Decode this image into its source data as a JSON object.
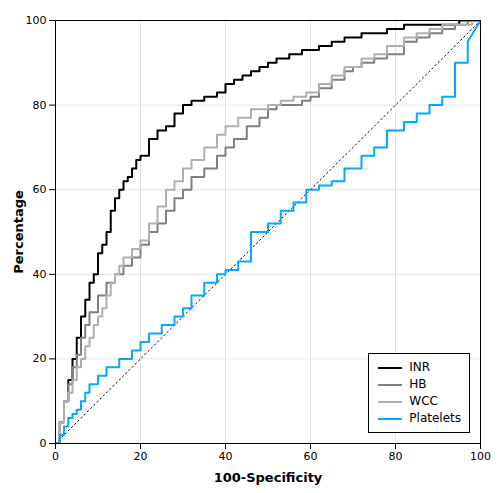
{
  "chart_data": {
    "type": "line",
    "xlabel": "100-Specificity",
    "ylabel": "Percentage",
    "xlim": [
      0,
      100
    ],
    "ylim": [
      0,
      100
    ],
    "xticks": [
      0,
      20,
      40,
      60,
      80,
      100
    ],
    "yticks": [
      0,
      20,
      40,
      60,
      80,
      100
    ],
    "grid": true,
    "legend": "lower right",
    "reference_line": {
      "x": [
        0,
        100
      ],
      "values": [
        0,
        100
      ],
      "color": "#000000",
      "line_style": "dotted"
    },
    "series": [
      {
        "name": "INR",
        "color": "#000000",
        "x": [
          0,
          1,
          1,
          2,
          2,
          3,
          3,
          4,
          4,
          5,
          5,
          6,
          6,
          7,
          7,
          8,
          8,
          9,
          9,
          10,
          10,
          11,
          11,
          12,
          12,
          13,
          13,
          14,
          14,
          15,
          15,
          16,
          16,
          17,
          17,
          18,
          18,
          19,
          19,
          20,
          20,
          22,
          22,
          24,
          24,
          26,
          26,
          28,
          28,
          30,
          30,
          32,
          32,
          35,
          35,
          38,
          38,
          40,
          40,
          42,
          42,
          44,
          44,
          46,
          46,
          48,
          48,
          50,
          50,
          52,
          52,
          55,
          55,
          58,
          58,
          60,
          60,
          62,
          62,
          65,
          65,
          68,
          68,
          70,
          70,
          72,
          72,
          75,
          75,
          78,
          78,
          80,
          80,
          82,
          82,
          85,
          85,
          88,
          88,
          90,
          90,
          92,
          92,
          95,
          95,
          98,
          98,
          100
        ],
        "values": [
          0,
          0,
          5,
          5,
          10,
          10,
          15,
          15,
          20,
          20,
          25,
          25,
          30,
          30,
          34,
          34,
          38,
          38,
          40,
          40,
          45,
          45,
          47,
          47,
          50,
          50,
          55,
          55,
          58,
          58,
          60,
          60,
          62,
          62,
          63,
          63,
          65,
          65,
          67,
          67,
          68,
          68,
          72,
          72,
          74,
          74,
          75,
          75,
          78,
          78,
          80,
          80,
          81,
          81,
          82,
          82,
          83,
          83,
          85,
          85,
          86,
          86,
          87,
          87,
          88,
          88,
          89,
          89,
          90,
          90,
          91,
          91,
          92,
          92,
          93,
          93,
          93,
          93,
          94,
          94,
          95,
          95,
          96,
          96,
          96,
          96,
          97,
          97,
          97,
          97,
          98,
          98,
          98,
          98,
          99,
          99,
          99,
          99,
          99,
          99,
          99,
          99,
          99,
          99,
          100,
          100,
          100,
          100
        ]
      },
      {
        "name": "HB",
        "color": "#808080",
        "x": [
          0,
          1,
          1,
          2,
          2,
          3,
          3,
          4,
          4,
          5,
          5,
          6,
          6,
          7,
          7,
          8,
          8,
          10,
          10,
          12,
          12,
          14,
          14,
          16,
          16,
          18,
          18,
          20,
          20,
          22,
          22,
          24,
          24,
          26,
          26,
          28,
          28,
          30,
          30,
          32,
          32,
          35,
          35,
          38,
          38,
          40,
          40,
          42,
          42,
          45,
          45,
          48,
          48,
          50,
          50,
          52,
          52,
          55,
          55,
          58,
          58,
          60,
          60,
          62,
          62,
          65,
          65,
          68,
          68,
          70,
          70,
          72,
          72,
          75,
          75,
          78,
          78,
          82,
          82,
          85,
          85,
          88,
          88,
          91,
          91,
          94,
          94,
          97,
          97,
          100
        ],
        "values": [
          0,
          0,
          5,
          5,
          10,
          10,
          14,
          14,
          18,
          18,
          21,
          21,
          25,
          25,
          28,
          28,
          31,
          31,
          35,
          35,
          38,
          38,
          40,
          40,
          42,
          42,
          44,
          44,
          47,
          47,
          50,
          50,
          52,
          52,
          55,
          55,
          58,
          58,
          60,
          60,
          63,
          63,
          65,
          65,
          68,
          68,
          70,
          70,
          72,
          72,
          75,
          75,
          77,
          77,
          79,
          79,
          80,
          80,
          80,
          80,
          81,
          81,
          82,
          82,
          84,
          84,
          86,
          86,
          88,
          88,
          89,
          89,
          90,
          90,
          91,
          91,
          92,
          92,
          95,
          95,
          96,
          96,
          97,
          97,
          98,
          98,
          99,
          99,
          100,
          100
        ]
      },
      {
        "name": "WCC",
        "color": "#b0b0b0",
        "x": [
          0,
          1,
          1,
          2,
          2,
          3,
          3,
          4,
          4,
          5,
          5,
          6,
          6,
          7,
          7,
          8,
          8,
          9,
          9,
          10,
          10,
          11,
          11,
          12,
          12,
          13,
          13,
          14,
          14,
          15,
          15,
          16,
          16,
          18,
          18,
          20,
          20,
          22,
          22,
          24,
          24,
          26,
          26,
          28,
          28,
          30,
          30,
          32,
          32,
          35,
          35,
          38,
          38,
          40,
          40,
          43,
          43,
          46,
          46,
          50,
          50,
          53,
          53,
          56,
          56,
          59,
          59,
          62,
          62,
          65,
          65,
          68,
          68,
          72,
          72,
          75,
          75,
          78,
          78,
          82,
          82,
          85,
          85,
          88,
          88,
          91,
          91,
          95,
          95,
          98,
          98,
          100
        ],
        "values": [
          0,
          0,
          5,
          5,
          10,
          10,
          12,
          12,
          15,
          15,
          18,
          18,
          20,
          20,
          23,
          23,
          25,
          25,
          28,
          28,
          30,
          30,
          32,
          32,
          35,
          35,
          38,
          38,
          40,
          40,
          42,
          42,
          44,
          44,
          46,
          46,
          48,
          48,
          52,
          52,
          56,
          56,
          60,
          60,
          62,
          62,
          65,
          65,
          67,
          67,
          70,
          70,
          73,
          73,
          75,
          75,
          77,
          77,
          79,
          79,
          80,
          80,
          81,
          81,
          82,
          82,
          83,
          83,
          85,
          85,
          87,
          87,
          89,
          89,
          91,
          91,
          92,
          92,
          94,
          94,
          96,
          96,
          97,
          97,
          98,
          98,
          99,
          99,
          99,
          99,
          100,
          100
        ]
      },
      {
        "name": "Platelets",
        "color": "#00aaff",
        "x": [
          0,
          1,
          1,
          2,
          2,
          3,
          3,
          4,
          4,
          5,
          5,
          6,
          6,
          7,
          7,
          8,
          8,
          10,
          10,
          12,
          12,
          15,
          15,
          18,
          18,
          20,
          20,
          22,
          22,
          25,
          25,
          28,
          28,
          30,
          30,
          32,
          32,
          35,
          35,
          38,
          38,
          40,
          40,
          43,
          43,
          46,
          46,
          50,
          50,
          53,
          53,
          56,
          56,
          59,
          59,
          62,
          62,
          65,
          65,
          68,
          68,
          72,
          72,
          75,
          75,
          78,
          78,
          82,
          82,
          85,
          85,
          88,
          88,
          91,
          91,
          94,
          94,
          97,
          97,
          100
        ],
        "values": [
          0,
          0,
          2,
          2,
          4,
          4,
          6,
          6,
          7,
          7,
          8,
          8,
          10,
          10,
          12,
          12,
          14,
          14,
          16,
          16,
          18,
          18,
          20,
          20,
          22,
          22,
          24,
          24,
          26,
          26,
          28,
          28,
          30,
          30,
          32,
          32,
          35,
          35,
          38,
          38,
          40,
          40,
          41,
          41,
          43,
          43,
          50,
          50,
          52,
          52,
          55,
          55,
          57,
          57,
          60,
          60,
          61,
          61,
          62,
          62,
          65,
          65,
          68,
          68,
          70,
          70,
          74,
          74,
          76,
          76,
          78,
          78,
          80,
          80,
          82,
          82,
          90,
          90,
          95,
          100
        ]
      }
    ]
  }
}
